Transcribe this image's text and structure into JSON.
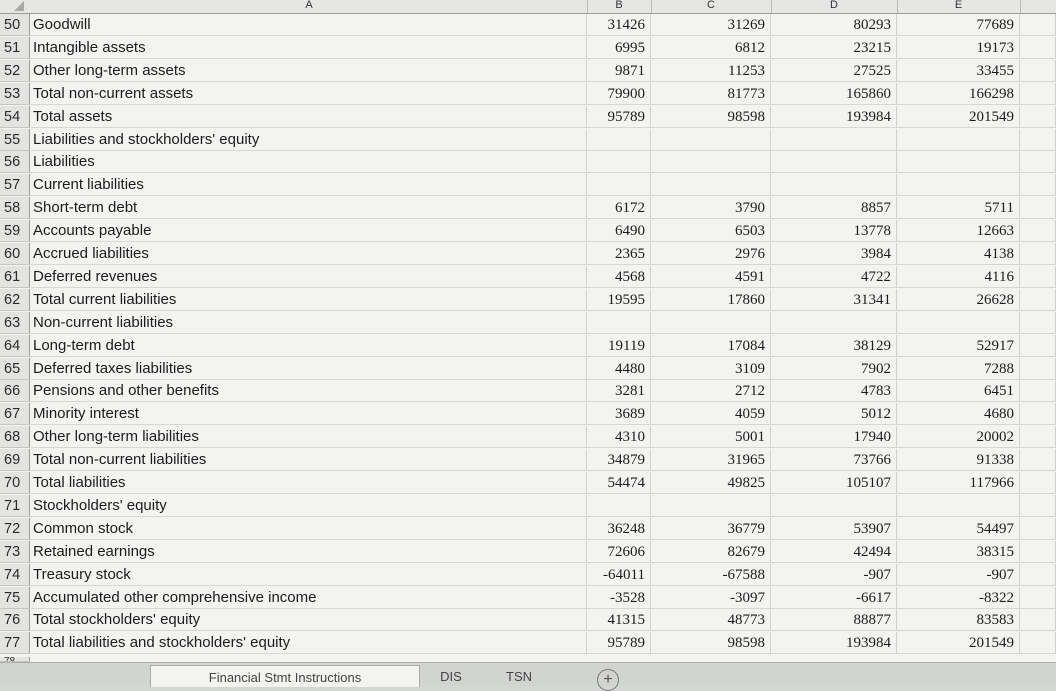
{
  "columns": [
    {
      "id": "A",
      "label": "A"
    },
    {
      "id": "B",
      "label": "B"
    },
    {
      "id": "C",
      "label": "C"
    },
    {
      "id": "D",
      "label": "D"
    },
    {
      "id": "E",
      "label": "E"
    }
  ],
  "rows": [
    {
      "n": "50",
      "label": "Goodwill",
      "b": "31426",
      "c": "31269",
      "d": "80293",
      "e": "77689"
    },
    {
      "n": "51",
      "label": "Intangible assets",
      "b": "6995",
      "c": "6812",
      "d": "23215",
      "e": "19173"
    },
    {
      "n": "52",
      "label": "Other long-term assets",
      "b": "9871",
      "c": "11253",
      "d": "27525",
      "e": "33455"
    },
    {
      "n": "53",
      "label": "Total non-current assets",
      "b": "79900",
      "c": "81773",
      "d": "165860",
      "e": "166298"
    },
    {
      "n": "54",
      "label": "Total assets",
      "b": "95789",
      "c": "98598",
      "d": "193984",
      "e": "201549"
    },
    {
      "n": "55",
      "label": "Liabilities and stockholders' equity",
      "b": "",
      "c": "",
      "d": "",
      "e": ""
    },
    {
      "n": "56",
      "label": "Liabilities",
      "b": "",
      "c": "",
      "d": "",
      "e": ""
    },
    {
      "n": "57",
      "label": "Current liabilities",
      "b": "",
      "c": "",
      "d": "",
      "e": ""
    },
    {
      "n": "58",
      "label": "Short-term debt",
      "b": "6172",
      "c": "3790",
      "d": "8857",
      "e": "5711"
    },
    {
      "n": "59",
      "label": "Accounts payable",
      "b": "6490",
      "c": "6503",
      "d": "13778",
      "e": "12663"
    },
    {
      "n": "60",
      "label": "Accrued liabilities",
      "b": "2365",
      "c": "2976",
      "d": "3984",
      "e": "4138"
    },
    {
      "n": "61",
      "label": "Deferred revenues",
      "b": "4568",
      "c": "4591",
      "d": "4722",
      "e": "4116"
    },
    {
      "n": "62",
      "label": "Total current liabilities",
      "b": "19595",
      "c": "17860",
      "d": "31341",
      "e": "26628"
    },
    {
      "n": "63",
      "label": "Non-current liabilities",
      "b": "",
      "c": "",
      "d": "",
      "e": ""
    },
    {
      "n": "64",
      "label": "Long-term debt",
      "b": "19119",
      "c": "17084",
      "d": "38129",
      "e": "52917"
    },
    {
      "n": "65",
      "label": "Deferred taxes liabilities",
      "b": "4480",
      "c": "3109",
      "d": "7902",
      "e": "7288"
    },
    {
      "n": "66",
      "label": "Pensions and other benefits",
      "b": "3281",
      "c": "2712",
      "d": "4783",
      "e": "6451"
    },
    {
      "n": "67",
      "label": "Minority interest",
      "b": "3689",
      "c": "4059",
      "d": "5012",
      "e": "4680"
    },
    {
      "n": "68",
      "label": "Other long-term liabilities",
      "b": "4310",
      "c": "5001",
      "d": "17940",
      "e": "20002"
    },
    {
      "n": "69",
      "label": "Total non-current liabilities",
      "b": "34879",
      "c": "31965",
      "d": "73766",
      "e": "91338"
    },
    {
      "n": "70",
      "label": "Total liabilities",
      "b": "54474",
      "c": "49825",
      "d": "105107",
      "e": "117966"
    },
    {
      "n": "71",
      "label": "Stockholders' equity",
      "b": "",
      "c": "",
      "d": "",
      "e": ""
    },
    {
      "n": "72",
      "label": "Common stock",
      "b": "36248",
      "c": "36779",
      "d": "53907",
      "e": "54497"
    },
    {
      "n": "73",
      "label": "Retained earnings",
      "b": "72606",
      "c": "82679",
      "d": "42494",
      "e": "38315"
    },
    {
      "n": "74",
      "label": "Treasury stock",
      "b": "-64011",
      "c": "-67588",
      "d": "-907",
      "e": "-907"
    },
    {
      "n": "75",
      "label": "Accumulated other comprehensive income",
      "b": "-3528",
      "c": "-3097",
      "d": "-6617",
      "e": "-8322"
    },
    {
      "n": "76",
      "label": "Total stockholders' equity",
      "b": "41315",
      "c": "48773",
      "d": "88877",
      "e": "83583"
    },
    {
      "n": "77",
      "label": "Total liabilities and stockholders' equity",
      "b": "95789",
      "c": "98598",
      "d": "193984",
      "e": "201549"
    }
  ],
  "partial_row": "78",
  "tabs": [
    {
      "label": "Financial Stmt Instructions"
    },
    {
      "label": "DIS"
    },
    {
      "label": "TSN"
    }
  ],
  "add_sheet_symbol": "+"
}
